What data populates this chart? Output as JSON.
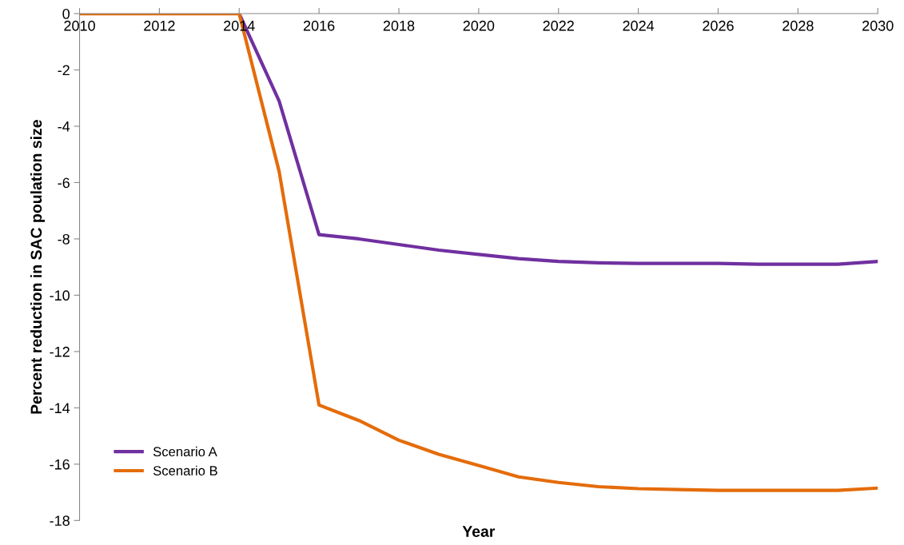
{
  "chart_data": {
    "type": "line",
    "xlabel": "Year",
    "ylabel": "Percent reduction in SAC poulation size",
    "x": [
      2010,
      2011,
      2012,
      2013,
      2014,
      2015,
      2016,
      2017,
      2018,
      2019,
      2020,
      2021,
      2022,
      2023,
      2024,
      2025,
      2026,
      2027,
      2028,
      2029,
      2030
    ],
    "series": [
      {
        "name": "Scenario A",
        "color": "#7030a0",
        "values": [
          null,
          null,
          null,
          null,
          0,
          -3.1,
          -7.85,
          -8.0,
          -8.2,
          -8.4,
          -8.55,
          -8.7,
          -8.8,
          -8.85,
          -8.87,
          -8.87,
          -8.87,
          -8.9,
          -8.9,
          -8.9,
          -8.8
        ]
      },
      {
        "name": "Scenario B",
        "color": "#e46c0a",
        "values": [
          0,
          0,
          0,
          0,
          0,
          -5.6,
          -13.9,
          -14.45,
          -15.15,
          -15.65,
          -16.05,
          -16.45,
          -16.65,
          -16.8,
          -16.87,
          -16.9,
          -16.93,
          -16.93,
          -16.93,
          -16.93,
          -16.85
        ]
      }
    ],
    "xlim": [
      2010,
      2030
    ],
    "xticks": [
      2010,
      2012,
      2014,
      2016,
      2018,
      2020,
      2022,
      2024,
      2026,
      2028,
      2030
    ],
    "ylim": [
      -18,
      0
    ],
    "yticks": [
      -18,
      -16,
      -14,
      -12,
      -10,
      -8,
      -6,
      -4,
      -2,
      0
    ],
    "grid": false,
    "legend": "bottom left",
    "marker": "none",
    "line_style": "solid"
  }
}
